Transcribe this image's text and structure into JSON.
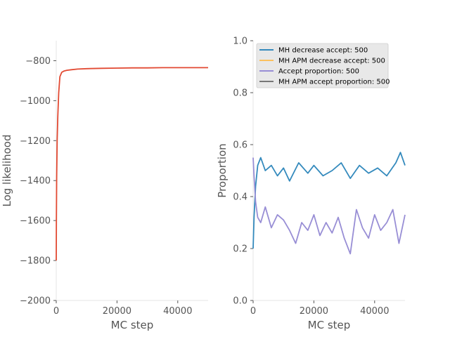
{
  "chart_data": [
    {
      "type": "line",
      "title": "",
      "xlabel": "MC step",
      "ylabel": "Log likelihood",
      "xlim": [
        0,
        50000
      ],
      "ylim": [
        -2000,
        -700
      ],
      "xticks": [
        0,
        20000,
        40000
      ],
      "xtick_labels": [
        "0",
        "20000",
        "40000"
      ],
      "yticks": [
        -2000,
        -1800,
        -1600,
        -1400,
        -1200,
        -1000,
        -800
      ],
      "ytick_labels": [
        "−2000",
        "−1800",
        "−1600",
        "−1400",
        "−1200",
        "−1000",
        "−800"
      ],
      "grid": false,
      "series": [
        {
          "color": "#e24a33",
          "x": [
            0,
            50,
            150,
            300,
            500,
            800,
            1200,
            1800,
            2500,
            3500,
            5000,
            7000,
            10000,
            15000,
            20000,
            25000,
            30000,
            35000,
            40000,
            45000,
            50000
          ],
          "values": [
            -1800,
            -1600,
            -1380,
            -1200,
            -1080,
            -960,
            -880,
            -858,
            -852,
            -848,
            -845,
            -842,
            -840,
            -838,
            -837,
            -836,
            -836,
            -835,
            -835,
            -835,
            -835
          ]
        }
      ]
    },
    {
      "type": "line",
      "title": "",
      "xlabel": "MC step",
      "ylabel": "Proportion",
      "xlim": [
        0,
        50000
      ],
      "ylim": [
        0.0,
        1.0
      ],
      "xticks": [
        0,
        20000,
        40000
      ],
      "xtick_labels": [
        "0",
        "20000",
        "40000"
      ],
      "yticks": [
        0.0,
        0.2,
        0.4,
        0.6,
        0.8,
        1.0
      ],
      "ytick_labels": [
        "0.0",
        "0.2",
        "0.4",
        "0.6",
        "0.8",
        "1.0"
      ],
      "grid": false,
      "legend_position": "top-left",
      "series": [
        {
          "name": "MH decrease accept: 500",
          "color": "#348abd",
          "x": [
            0,
            300,
            800,
            1500,
            2500,
            4000,
            6000,
            8000,
            10000,
            12000,
            15000,
            18000,
            20000,
            23000,
            26000,
            29000,
            32000,
            35000,
            38000,
            41000,
            44000,
            47000,
            48500,
            50000
          ],
          "values": [
            0.2,
            0.32,
            0.44,
            0.52,
            0.55,
            0.5,
            0.52,
            0.48,
            0.51,
            0.46,
            0.53,
            0.49,
            0.52,
            0.48,
            0.5,
            0.53,
            0.47,
            0.52,
            0.49,
            0.51,
            0.48,
            0.53,
            0.57,
            0.52
          ]
        },
        {
          "name": "MH APM decrease accept: 500",
          "color": "#fbc15e",
          "x": [],
          "values": []
        },
        {
          "name": "Accept proportion: 500",
          "color": "#988ed5",
          "x": [
            0,
            300,
            800,
            1500,
            2500,
            4000,
            6000,
            8000,
            10000,
            12000,
            14000,
            16000,
            18000,
            20000,
            22000,
            24000,
            26000,
            28000,
            30000,
            32000,
            34000,
            36000,
            38000,
            40000,
            42000,
            44000,
            46000,
            48000,
            50000
          ],
          "values": [
            0.55,
            0.48,
            0.38,
            0.32,
            0.3,
            0.36,
            0.28,
            0.33,
            0.31,
            0.27,
            0.22,
            0.3,
            0.27,
            0.33,
            0.25,
            0.3,
            0.26,
            0.32,
            0.24,
            0.18,
            0.35,
            0.28,
            0.24,
            0.33,
            0.27,
            0.3,
            0.35,
            0.22,
            0.33
          ]
        },
        {
          "name": "MH APM accept proportion: 500",
          "color": "#777777",
          "x": [],
          "values": []
        }
      ]
    }
  ]
}
